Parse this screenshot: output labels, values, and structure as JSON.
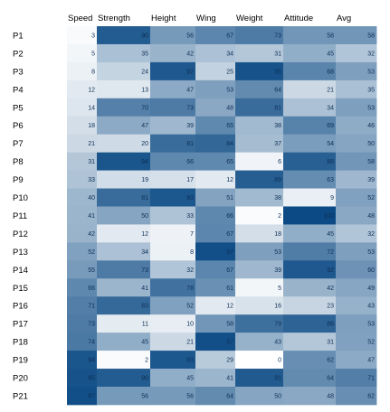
{
  "chart_data": {
    "type": "heatmap",
    "columns": [
      "Speed",
      "Strength",
      "Height",
      "Wing",
      "Weight",
      "Attitude",
      "Avg"
    ],
    "rows": [
      "P1",
      "P2",
      "P3",
      "P4",
      "P5",
      "P6",
      "P7",
      "P8",
      "P9",
      "P10",
      "P11",
      "P12",
      "P13",
      "P14",
      "P15",
      "P16",
      "P17",
      "P18",
      "P19",
      "P20",
      "P21"
    ],
    "values": [
      [
        3,
        90,
        56,
        67,
        73,
        58,
        58
      ],
      [
        5,
        35,
        42,
        34,
        31,
        45,
        32
      ],
      [
        8,
        24,
        92,
        25,
        95,
        68,
        53
      ],
      [
        12,
        13,
        47,
        53,
        64,
        21,
        35
      ],
      [
        14,
        70,
        73,
        48,
        81,
        34,
        53
      ],
      [
        18,
        47,
        39,
        65,
        38,
        69,
        46
      ],
      [
        21,
        20,
        81,
        84,
        37,
        54,
        50
      ],
      [
        31,
        94,
        66,
        65,
        6,
        88,
        58
      ],
      [
        33,
        19,
        17,
        12,
        89,
        63,
        39
      ],
      [
        40,
        81,
        93,
        51,
        38,
        9,
        52
      ],
      [
        41,
        50,
        33,
        66,
        2,
        100,
        48
      ],
      [
        42,
        12,
        7,
        67,
        18,
        45,
        32
      ],
      [
        52,
        34,
        8,
        97,
        53,
        72,
        53
      ],
      [
        55,
        73,
        32,
        67,
        39,
        92,
        60
      ],
      [
        66,
        41,
        78,
        61,
        5,
        42,
        49
      ],
      [
        71,
        83,
        52,
        12,
        16,
        23,
        43
      ],
      [
        73,
        11,
        10,
        58,
        79,
        86,
        53
      ],
      [
        74,
        45,
        21,
        97,
        43,
        31,
        52
      ],
      [
        94,
        2,
        93,
        29,
        0,
        62,
        47
      ],
      [
        95,
        90,
        45,
        41,
        91,
        64,
        71
      ],
      [
        97,
        56,
        56,
        64,
        50,
        48,
        62
      ]
    ],
    "color_low": "#ffffff",
    "color_high": "#0b4a84",
    "text_color": "#0d2f57"
  }
}
